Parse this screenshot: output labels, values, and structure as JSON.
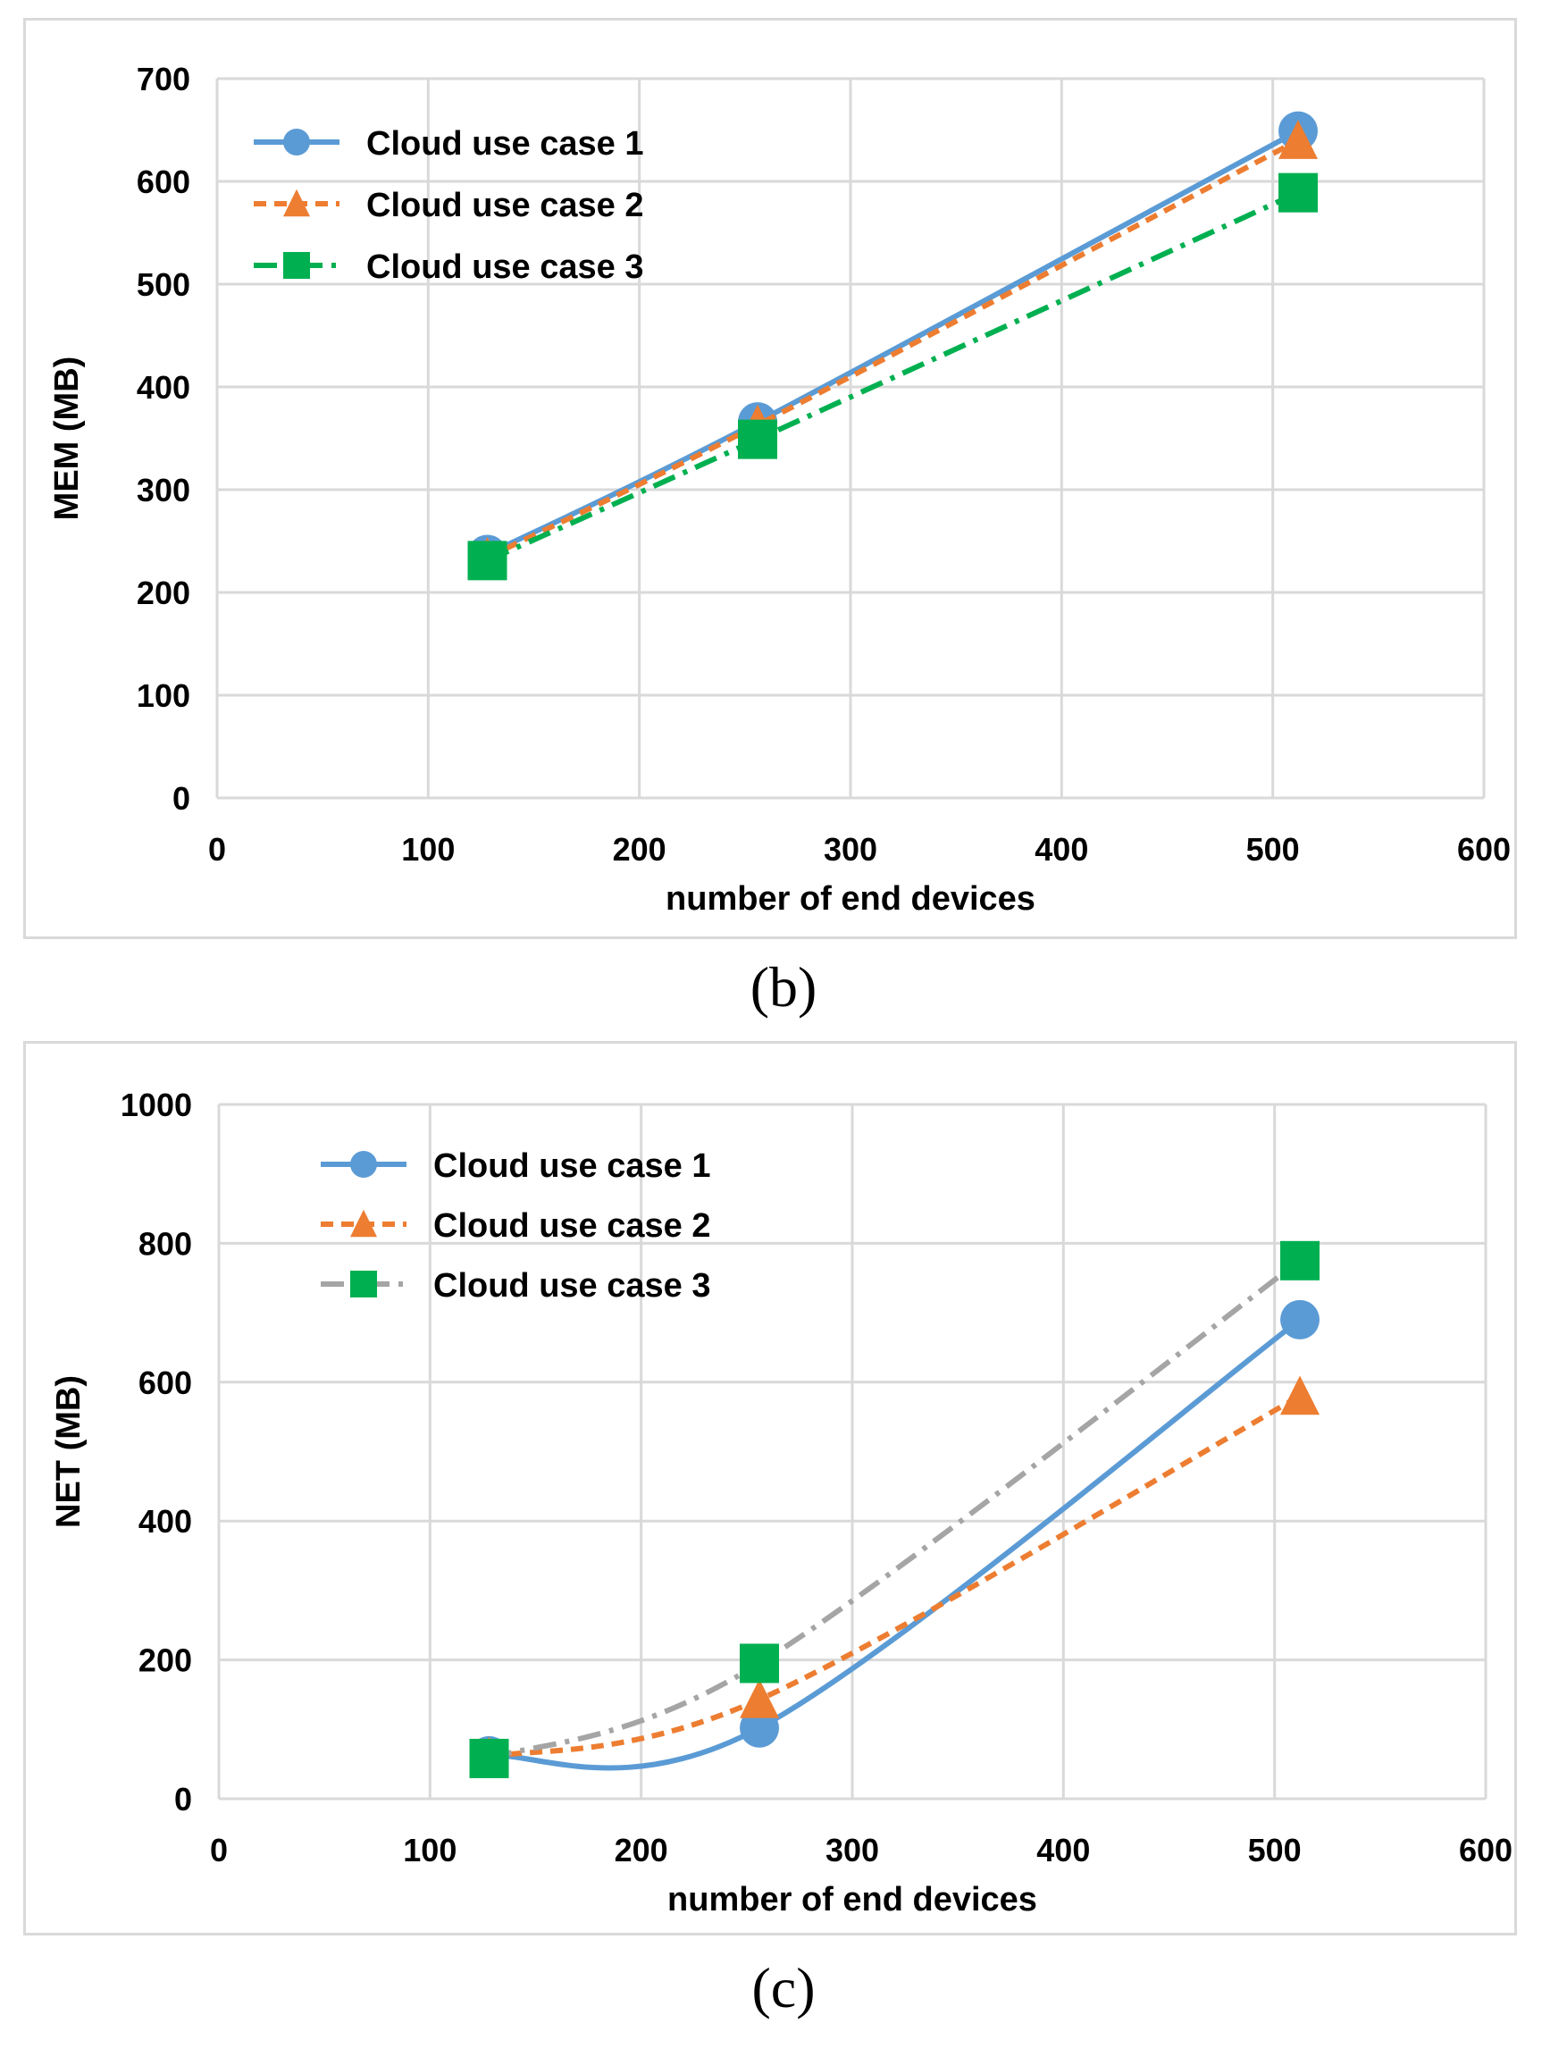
{
  "chart_data": [
    {
      "id": "b",
      "type": "line",
      "caption": "(b)",
      "xlabel": "number of end devices",
      "ylabel": "MEM (MB)",
      "xlim": [
        0,
        600
      ],
      "ylim": [
        0,
        700
      ],
      "xticks": [
        0,
        100,
        200,
        300,
        400,
        500,
        600
      ],
      "yticks": [
        0,
        100,
        200,
        300,
        400,
        500,
        600,
        700
      ],
      "grid": true,
      "legend_position": "top-left",
      "x": [
        128,
        256,
        512
      ],
      "series": [
        {
          "name": "Cloud use case 1",
          "values": [
            237,
            366,
            649
          ],
          "color": "#5b9bd5",
          "line": "solid",
          "marker": "circle"
        },
        {
          "name": "Cloud use case 2",
          "values": [
            234,
            363,
            640
          ],
          "color": "#ed7d31",
          "line": "dashed",
          "marker": "triangle"
        },
        {
          "name": "Cloud use case 3",
          "values": [
            231,
            349,
            589
          ],
          "color": "#00b050",
          "line": "dash-dot",
          "marker": "square"
        }
      ]
    },
    {
      "id": "c",
      "type": "line",
      "caption": "(c)",
      "xlabel": "number of end devices",
      "ylabel": "NET (MB)",
      "xlim": [
        0,
        600
      ],
      "ylim": [
        0,
        1000
      ],
      "xticks": [
        0,
        100,
        200,
        300,
        400,
        500,
        600
      ],
      "yticks": [
        0,
        200,
        400,
        600,
        800,
        1000
      ],
      "grid": true,
      "legend_position": "top-left",
      "x": [
        128,
        256,
        512
      ],
      "series": [
        {
          "name": "Cloud use case 1",
          "values": [
            62,
            102,
            690
          ],
          "color": "#5b9bd5",
          "line": "solid",
          "marker": "circle"
        },
        {
          "name": "Cloud use case 2",
          "values": [
            60,
            143,
            580
          ],
          "color": "#ed7d31",
          "line": "dashed",
          "marker": "triangle"
        },
        {
          "name": "Cloud use case 3",
          "values": [
            58,
            195,
            775
          ],
          "color": "#a5a5a5",
          "line": "dash-dot",
          "marker": "square",
          "marker_color": "#00b050"
        }
      ]
    }
  ]
}
